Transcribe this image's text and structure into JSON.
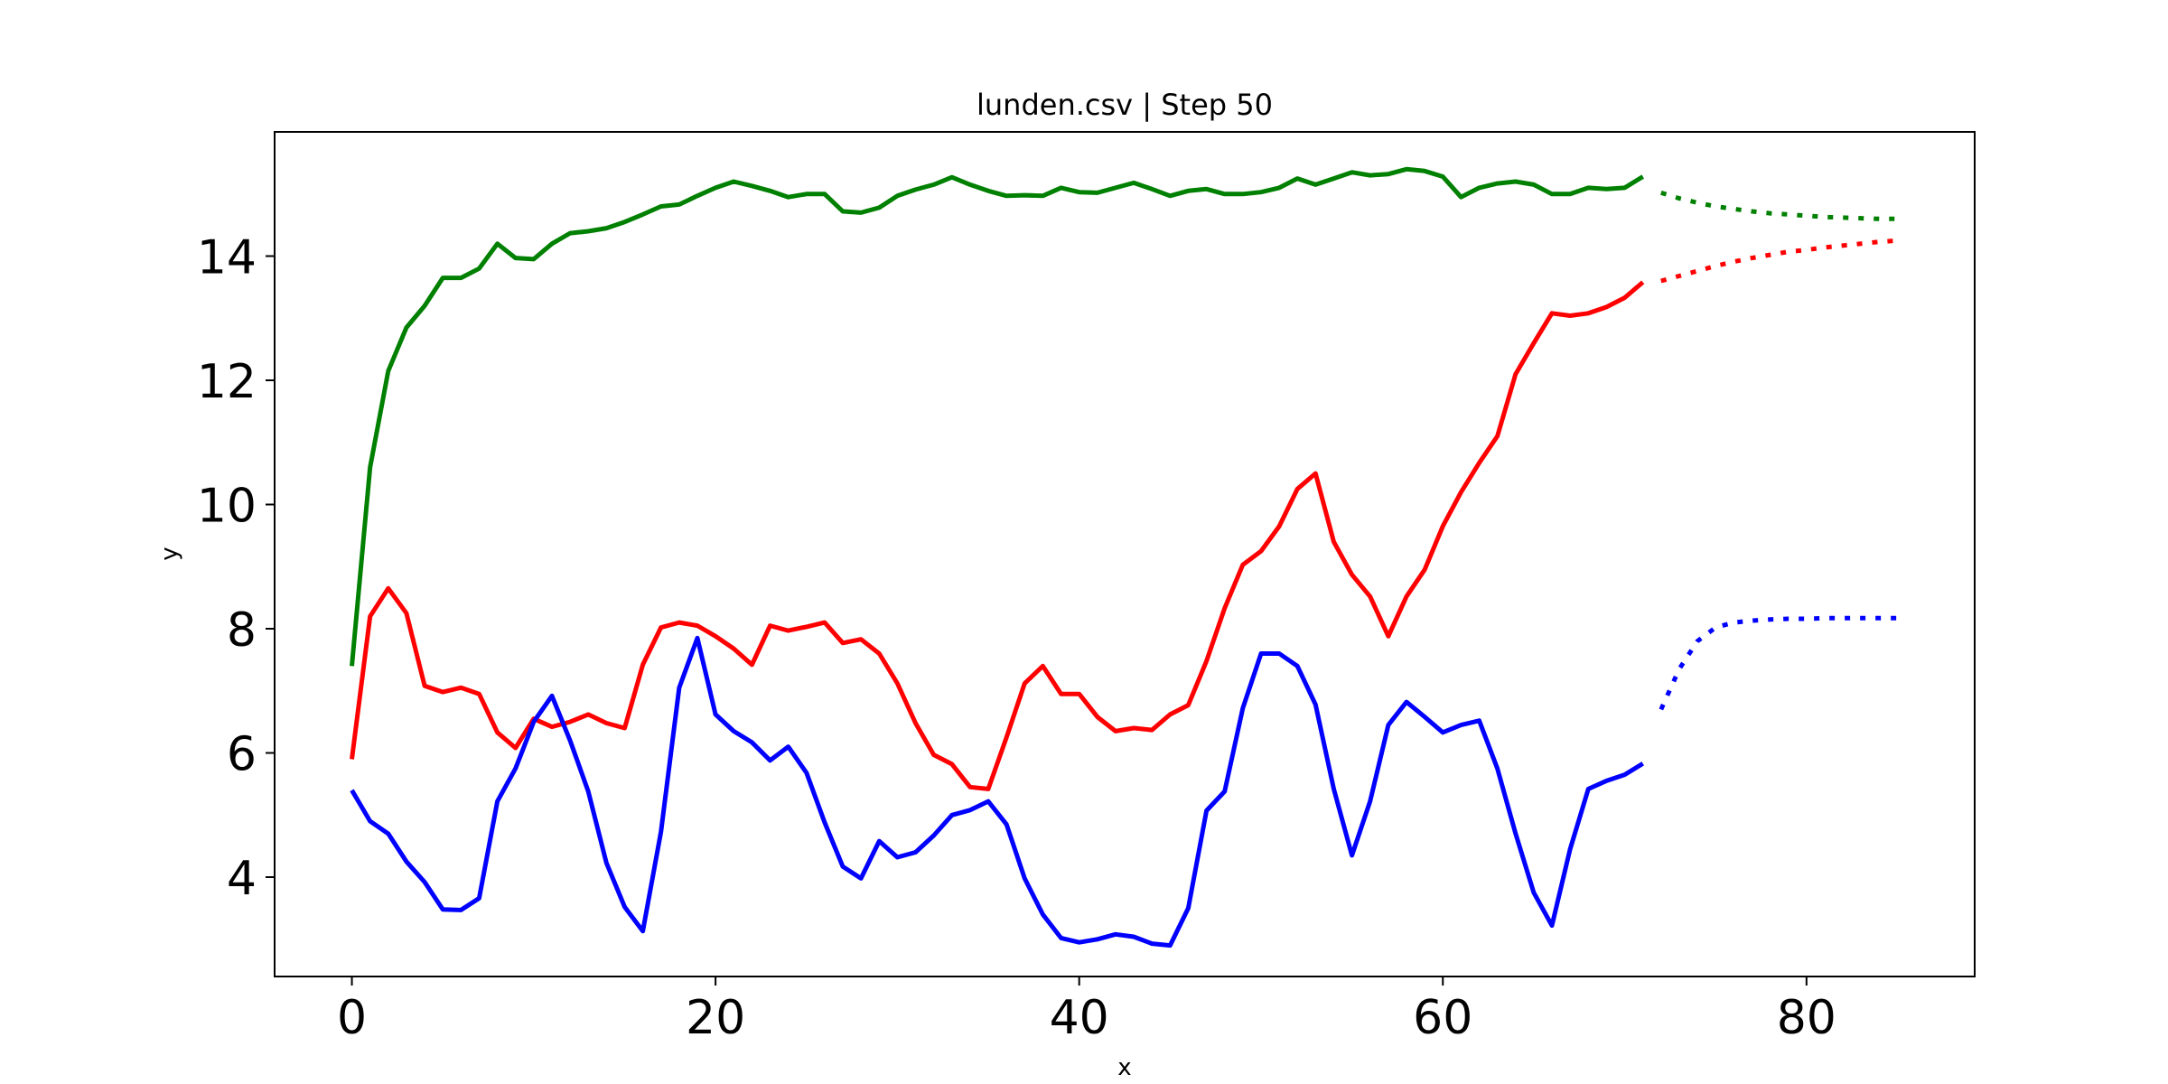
{
  "chart_data": {
    "type": "line",
    "title": "lunden.csv | Step 50",
    "xlabel": "x",
    "ylabel": "y",
    "xlim": [
      -4.25,
      89.25
    ],
    "ylim": [
      2.4,
      16.0
    ],
    "xticks": [
      0,
      20,
      40,
      60,
      80
    ],
    "yticks": [
      4,
      6,
      8,
      10,
      12,
      14
    ],
    "grid": false,
    "legend": "none",
    "series": [
      {
        "color": "#008000",
        "x_start": 0,
        "values": [
          7.4,
          10.6,
          12.15,
          12.85,
          13.2,
          13.65,
          13.65,
          13.8,
          14.2,
          13.97,
          13.95,
          14.2,
          14.37,
          14.4,
          14.45,
          14.55,
          14.67,
          14.8,
          14.83,
          14.97,
          15.1,
          15.2,
          15.13,
          15.05,
          14.95,
          15.0,
          15.0,
          14.72,
          14.7,
          14.78,
          14.97,
          15.07,
          15.15,
          15.27,
          15.15,
          15.05,
          14.97,
          14.98,
          14.97,
          15.1,
          15.03,
          15.02,
          15.1,
          15.18,
          15.08,
          14.97,
          15.05,
          15.08,
          15.0,
          15.0,
          15.03,
          15.1,
          15.25,
          15.15,
          15.25,
          15.35,
          15.3,
          15.32,
          15.4,
          15.37,
          15.28,
          14.95,
          15.1,
          15.17,
          15.2,
          15.15,
          15.0,
          15.0,
          15.1,
          15.08,
          15.1,
          15.28
        ]
      },
      {
        "color": "#ff0000",
        "x_start": 0,
        "values": [
          5.9,
          8.2,
          8.65,
          8.25,
          7.08,
          6.98,
          7.05,
          6.95,
          6.33,
          6.08,
          6.55,
          6.42,
          6.5,
          6.62,
          6.48,
          6.4,
          7.42,
          8.02,
          8.1,
          8.05,
          7.88,
          7.68,
          7.42,
          8.05,
          7.97,
          8.03,
          8.1,
          7.77,
          7.83,
          7.6,
          7.12,
          6.48,
          5.97,
          5.82,
          5.45,
          5.42,
          6.25,
          7.12,
          7.4,
          6.95,
          6.95,
          6.58,
          6.35,
          6.4,
          6.37,
          6.62,
          6.77,
          7.48,
          8.33,
          9.03,
          9.25,
          9.65,
          10.25,
          10.5,
          9.4,
          8.87,
          8.52,
          7.88,
          8.52,
          8.95,
          9.65,
          10.2,
          10.67,
          11.1,
          12.1,
          12.6,
          13.08,
          13.04,
          13.08,
          13.18,
          13.33,
          13.58
        ]
      },
      {
        "color": "#0000ff",
        "x_start": 0,
        "values": [
          5.4,
          4.9,
          4.7,
          4.25,
          3.92,
          3.48,
          3.47,
          3.66,
          5.22,
          5.75,
          6.5,
          6.92,
          6.2,
          5.38,
          4.23,
          3.52,
          3.13,
          4.73,
          7.05,
          7.85,
          6.62,
          6.35,
          6.17,
          5.88,
          6.1,
          5.68,
          4.88,
          4.17,
          3.98,
          4.58,
          4.32,
          4.4,
          4.67,
          5.0,
          5.08,
          5.22,
          4.85,
          3.98,
          3.4,
          3.02,
          2.95,
          3.0,
          3.08,
          3.04,
          2.93,
          2.9,
          3.5,
          5.07,
          5.38,
          6.72,
          7.6,
          7.6,
          7.4,
          6.78,
          5.42,
          4.35,
          5.22,
          6.45,
          6.82,
          6.58,
          6.33,
          6.45,
          6.52,
          5.75,
          4.7,
          3.75,
          3.22,
          4.45,
          5.42,
          5.55,
          5.65,
          5.83
        ]
      }
    ],
    "forecasts": [
      {
        "color": "#008000",
        "x": [
          72,
          73,
          74,
          75,
          76,
          77,
          78,
          79,
          80,
          81,
          82,
          83,
          84,
          85
        ],
        "values": [
          15.02,
          14.93,
          14.86,
          14.8,
          14.76,
          14.72,
          14.69,
          14.67,
          14.65,
          14.63,
          14.62,
          14.61,
          14.6,
          14.6
        ]
      },
      {
        "color": "#ff0000",
        "x": [
          72,
          73,
          74,
          75,
          76,
          77,
          78,
          79,
          80,
          81,
          82,
          83,
          84,
          85
        ],
        "values": [
          13.6,
          13.68,
          13.76,
          13.84,
          13.91,
          13.97,
          14.02,
          14.07,
          14.1,
          14.14,
          14.17,
          14.2,
          14.23,
          14.25
        ]
      },
      {
        "color": "#0000ff",
        "x": [
          72,
          73,
          74,
          75,
          76,
          77,
          78,
          79,
          80,
          81,
          82,
          83,
          84,
          85
        ],
        "values": [
          6.7,
          7.35,
          7.8,
          8.02,
          8.1,
          8.13,
          8.15,
          8.16,
          8.16,
          8.17,
          8.17,
          8.17,
          8.17,
          8.17
        ]
      }
    ]
  }
}
